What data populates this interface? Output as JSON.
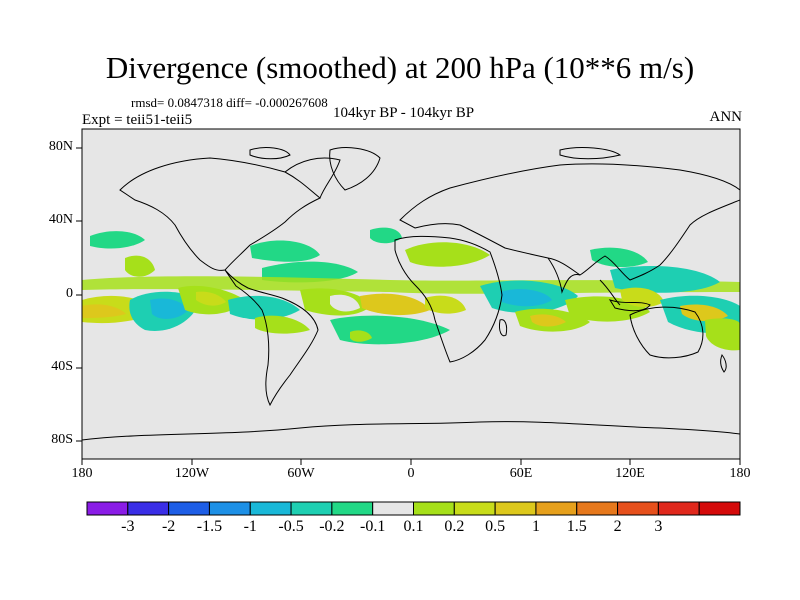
{
  "title": "Divergence (smoothed) at 200 hPa (10**6 m/s)",
  "stats": "rmsd= 0.0847318 diff= -0.000267608",
  "expt": "Expt = teii51-teii5",
  "center_label": "104kyr BP - 104kyr BP",
  "season": "ANN",
  "y_axis": {
    "ticks": [
      {
        "label": "80N",
        "value": 80
      },
      {
        "label": "40N",
        "value": 40
      },
      {
        "label": "0",
        "value": 0
      },
      {
        "label": "40S",
        "value": -40
      },
      {
        "label": "80S",
        "value": -80
      }
    ]
  },
  "x_axis": {
    "ticks": [
      {
        "label": "180",
        "value": -180
      },
      {
        "label": "120W",
        "value": -120
      },
      {
        "label": "60W",
        "value": -60
      },
      {
        "label": "0",
        "value": 0
      },
      {
        "label": "60E",
        "value": 60
      },
      {
        "label": "120E",
        "value": 120
      },
      {
        "label": "180",
        "value": 180
      }
    ]
  },
  "colorbar": {
    "colors": [
      "#8a1ce6",
      "#3a2ee6",
      "#1e5ee6",
      "#1d90e6",
      "#19b8d8",
      "#1ecfb2",
      "#22d886",
      "#e6e6e6",
      "#a6e01a",
      "#c8dc1a",
      "#ddc81c",
      "#e6a01c",
      "#e6781c",
      "#e6501c",
      "#e0281c",
      "#d40a0a"
    ],
    "labels": [
      "-3",
      "-2",
      "-1.5",
      "-1",
      "-0.5",
      "-0.2",
      "-0.1",
      "0.1",
      "0.2",
      "0.5",
      "1",
      "1.5",
      "2",
      "3"
    ]
  }
}
